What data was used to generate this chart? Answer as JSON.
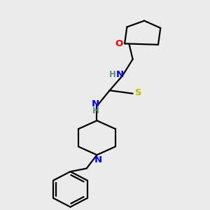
{
  "bg_color": "#ebebeb",
  "bond_color": "#000000",
  "N_color": "#0000ee",
  "O_color": "#ee0000",
  "S_color": "#bbbb00",
  "H_color": "#5f9090",
  "line_width": 1.6,
  "figsize": [
    3.0,
    3.0
  ],
  "dpi": 100,
  "xlim": [
    0.05,
    0.95
  ],
  "ylim": [
    0.02,
    1.02
  ]
}
